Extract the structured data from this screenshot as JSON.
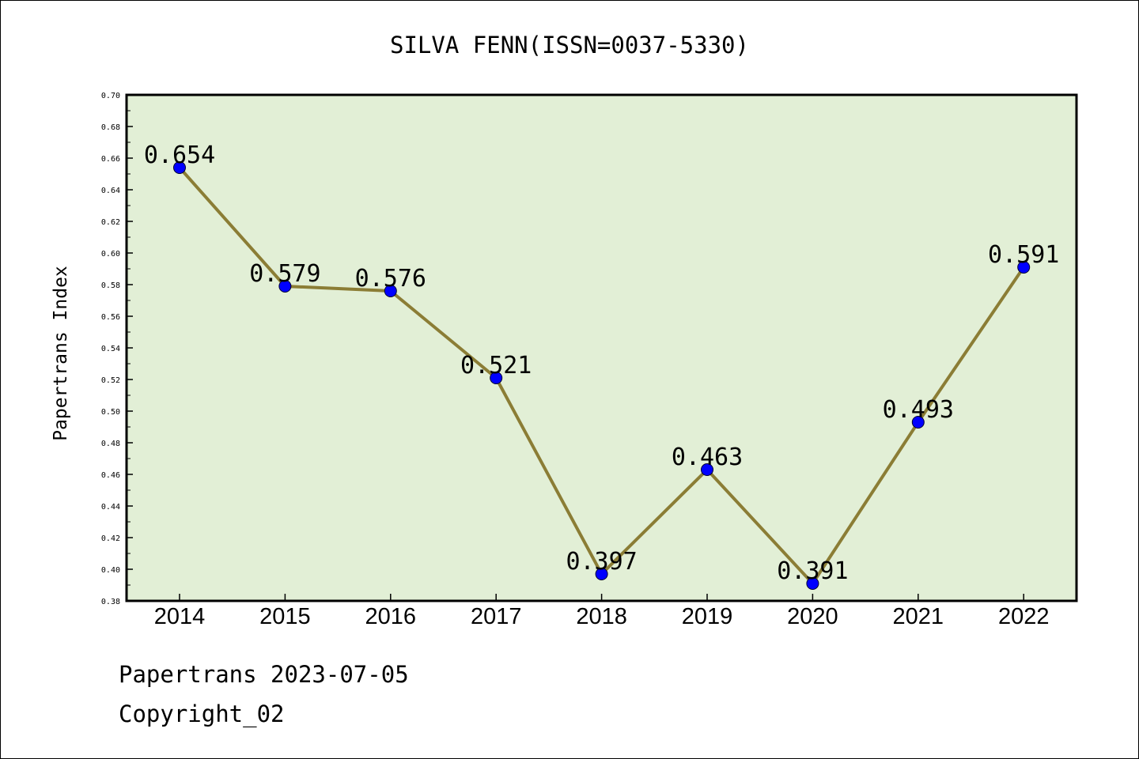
{
  "chart_data": {
    "type": "line",
    "title": "SILVA FENN(ISSN=0037-5330)",
    "xlabel": "",
    "ylabel": "Papertrans Index",
    "categories": [
      "2014",
      "2015",
      "2016",
      "2017",
      "2018",
      "2019",
      "2020",
      "2021",
      "2022"
    ],
    "values": [
      0.654,
      0.579,
      0.576,
      0.521,
      0.397,
      0.463,
      0.391,
      0.493,
      0.591
    ],
    "value_labels": [
      "0.654",
      "0.579",
      "0.576",
      "0.521",
      "0.397",
      "0.463",
      "0.391",
      "0.493",
      "0.591"
    ],
    "ylim": [
      0.38,
      0.7
    ],
    "yticks": [
      "0.38",
      "0.40",
      "0.42",
      "0.44",
      "0.46",
      "0.48",
      "0.50",
      "0.52",
      "0.54",
      "0.56",
      "0.58",
      "0.60",
      "0.62",
      "0.64",
      "0.66",
      "0.68",
      "0.70"
    ],
    "grid": false,
    "colors": {
      "plot_background": "#e2efd6",
      "line": "#8b7d35",
      "marker": "#0000ff"
    }
  },
  "footer": {
    "line1": "Papertrans 2023-07-05",
    "line2": "Copyright_02"
  }
}
